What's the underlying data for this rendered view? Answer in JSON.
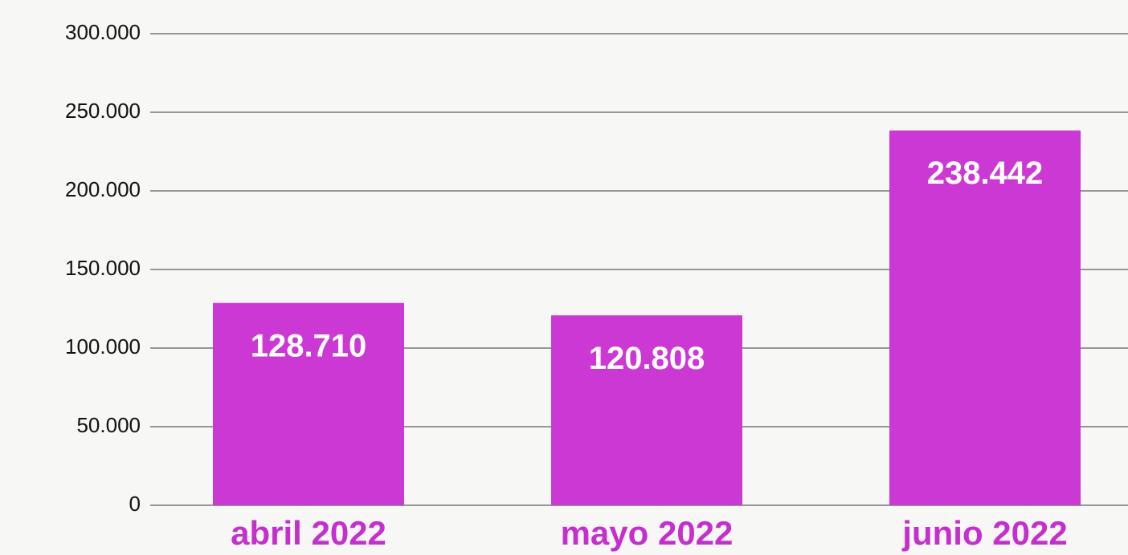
{
  "chart_data": {
    "type": "bar",
    "categories": [
      "abril 2022",
      "mayo 2022",
      "junio 2022"
    ],
    "values": [
      128710,
      120808,
      238442
    ],
    "value_labels": [
      "128.710",
      "120.808",
      "238.442"
    ],
    "color": "#cc38d4",
    "ylim": [
      0,
      300000
    ],
    "yticks": [
      0,
      {
        "value": 50000,
        "label": "50.000"
      },
      {
        "value": 100000,
        "label": "100.000"
      },
      {
        "value": 150000,
        "label": "150.000"
      },
      {
        "value": 200000,
        "label": "200.000"
      },
      {
        "value": 250000,
        "label": "250.000"
      },
      {
        "value": 300000,
        "label": "300.000"
      }
    ],
    "grid": true
  }
}
